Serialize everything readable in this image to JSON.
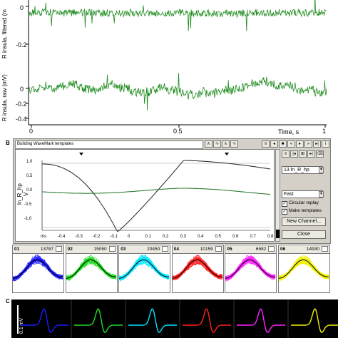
{
  "panelA": {
    "ylabel_filtered": "R insula, filtered (m",
    "ylabel_raw": "R insula, raw (mV)",
    "yticks_top": [
      "0",
      "-0.2"
    ],
    "yticks_bottom": [
      "0",
      "-0.2",
      "-0.4"
    ],
    "xticks": [
      "0",
      "0.5",
      "1"
    ],
    "xlabel": "Time, s",
    "trace_color": "#1e8c1e"
  },
  "panelB": {
    "letter": "B",
    "window_title": "Building WaveMark templates",
    "ylabel": "ln_R_hp",
    "yunit": "V",
    "yticks": [
      "1.0",
      "0.5",
      "0.0",
      "-0.5",
      "-1.0"
    ],
    "xunit": "ms",
    "xticks": [
      "-0.4",
      "-0.3",
      "-0.2",
      "-0.1",
      "0",
      "0.1",
      "0.2",
      "0.3",
      "0.4",
      "0.5",
      "0.6",
      "0.7",
      "0.8"
    ],
    "channel_select": "13 ln_R_hp",
    "speed_select": "Fast",
    "circular_replay": "Circular replay",
    "make_templates": "Make templates",
    "new_channel": "New Channel...",
    "close": "Close",
    "toolbar_icons": [
      "wave-shape-1-icon",
      "wave-shape-2-icon",
      "wave-shape-3-icon",
      "wave-shape-4-icon"
    ],
    "right_icons": [
      "settings-icon",
      "step-back-icon",
      "stop-icon",
      "rewind-icon",
      "play-icon",
      "fast-forward-icon",
      "step-icon",
      "info-icon",
      "scroll-icon"
    ]
  },
  "templates": [
    {
      "num": "01",
      "count": "13787",
      "color": "#1a1aff"
    },
    {
      "num": "02",
      "count": "15050",
      "color": "#22dd22"
    },
    {
      "num": "03",
      "count": "20450",
      "color": "#00e5ff"
    },
    {
      "num": "04",
      "count": "10159",
      "color": "#ff2020"
    },
    {
      "num": "05",
      "count": "6582",
      "color": "#ff22ff"
    },
    {
      "num": "06",
      "count": "14930",
      "color": "#f2f200"
    }
  ],
  "panelC": {
    "letter": "C",
    "scale_label": "0.1 mV"
  }
}
